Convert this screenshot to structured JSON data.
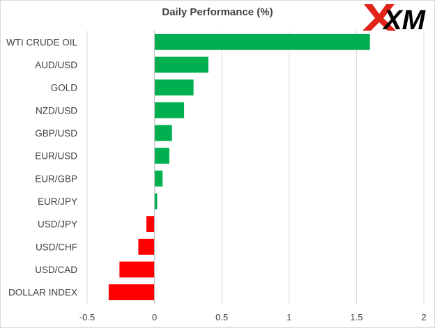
{
  "brand": {
    "logo_text": "XM",
    "colors": {
      "x_mark": "#e2231a",
      "text": "#000000"
    }
  },
  "chart_data": {
    "type": "bar",
    "orientation": "horizontal",
    "title": "Daily Performance  (%)",
    "categories": [
      "WTI CRUDE OIL",
      "AUD/USD",
      "GOLD",
      "NZD/USD",
      "GBP/USD",
      "EUR/USD",
      "EUR/GBP",
      "EUR/JPY",
      "USD/JPY",
      "USD/CHF",
      "USD/CAD",
      "DOLLAR INDEX"
    ],
    "values": [
      1.6,
      0.4,
      0.29,
      0.22,
      0.13,
      0.11,
      0.06,
      0.02,
      -0.06,
      -0.12,
      -0.26,
      -0.34
    ],
    "xlim": [
      -0.5,
      2
    ],
    "xticks": [
      "-0.5",
      "0",
      "0.5",
      "1",
      "1.5",
      "2"
    ],
    "grid": true,
    "legend": "none",
    "colors": {
      "positive": "#00b050",
      "negative": "#ff0000",
      "grid": "#d9d9d9",
      "axis": "#bfbfbf"
    }
  }
}
